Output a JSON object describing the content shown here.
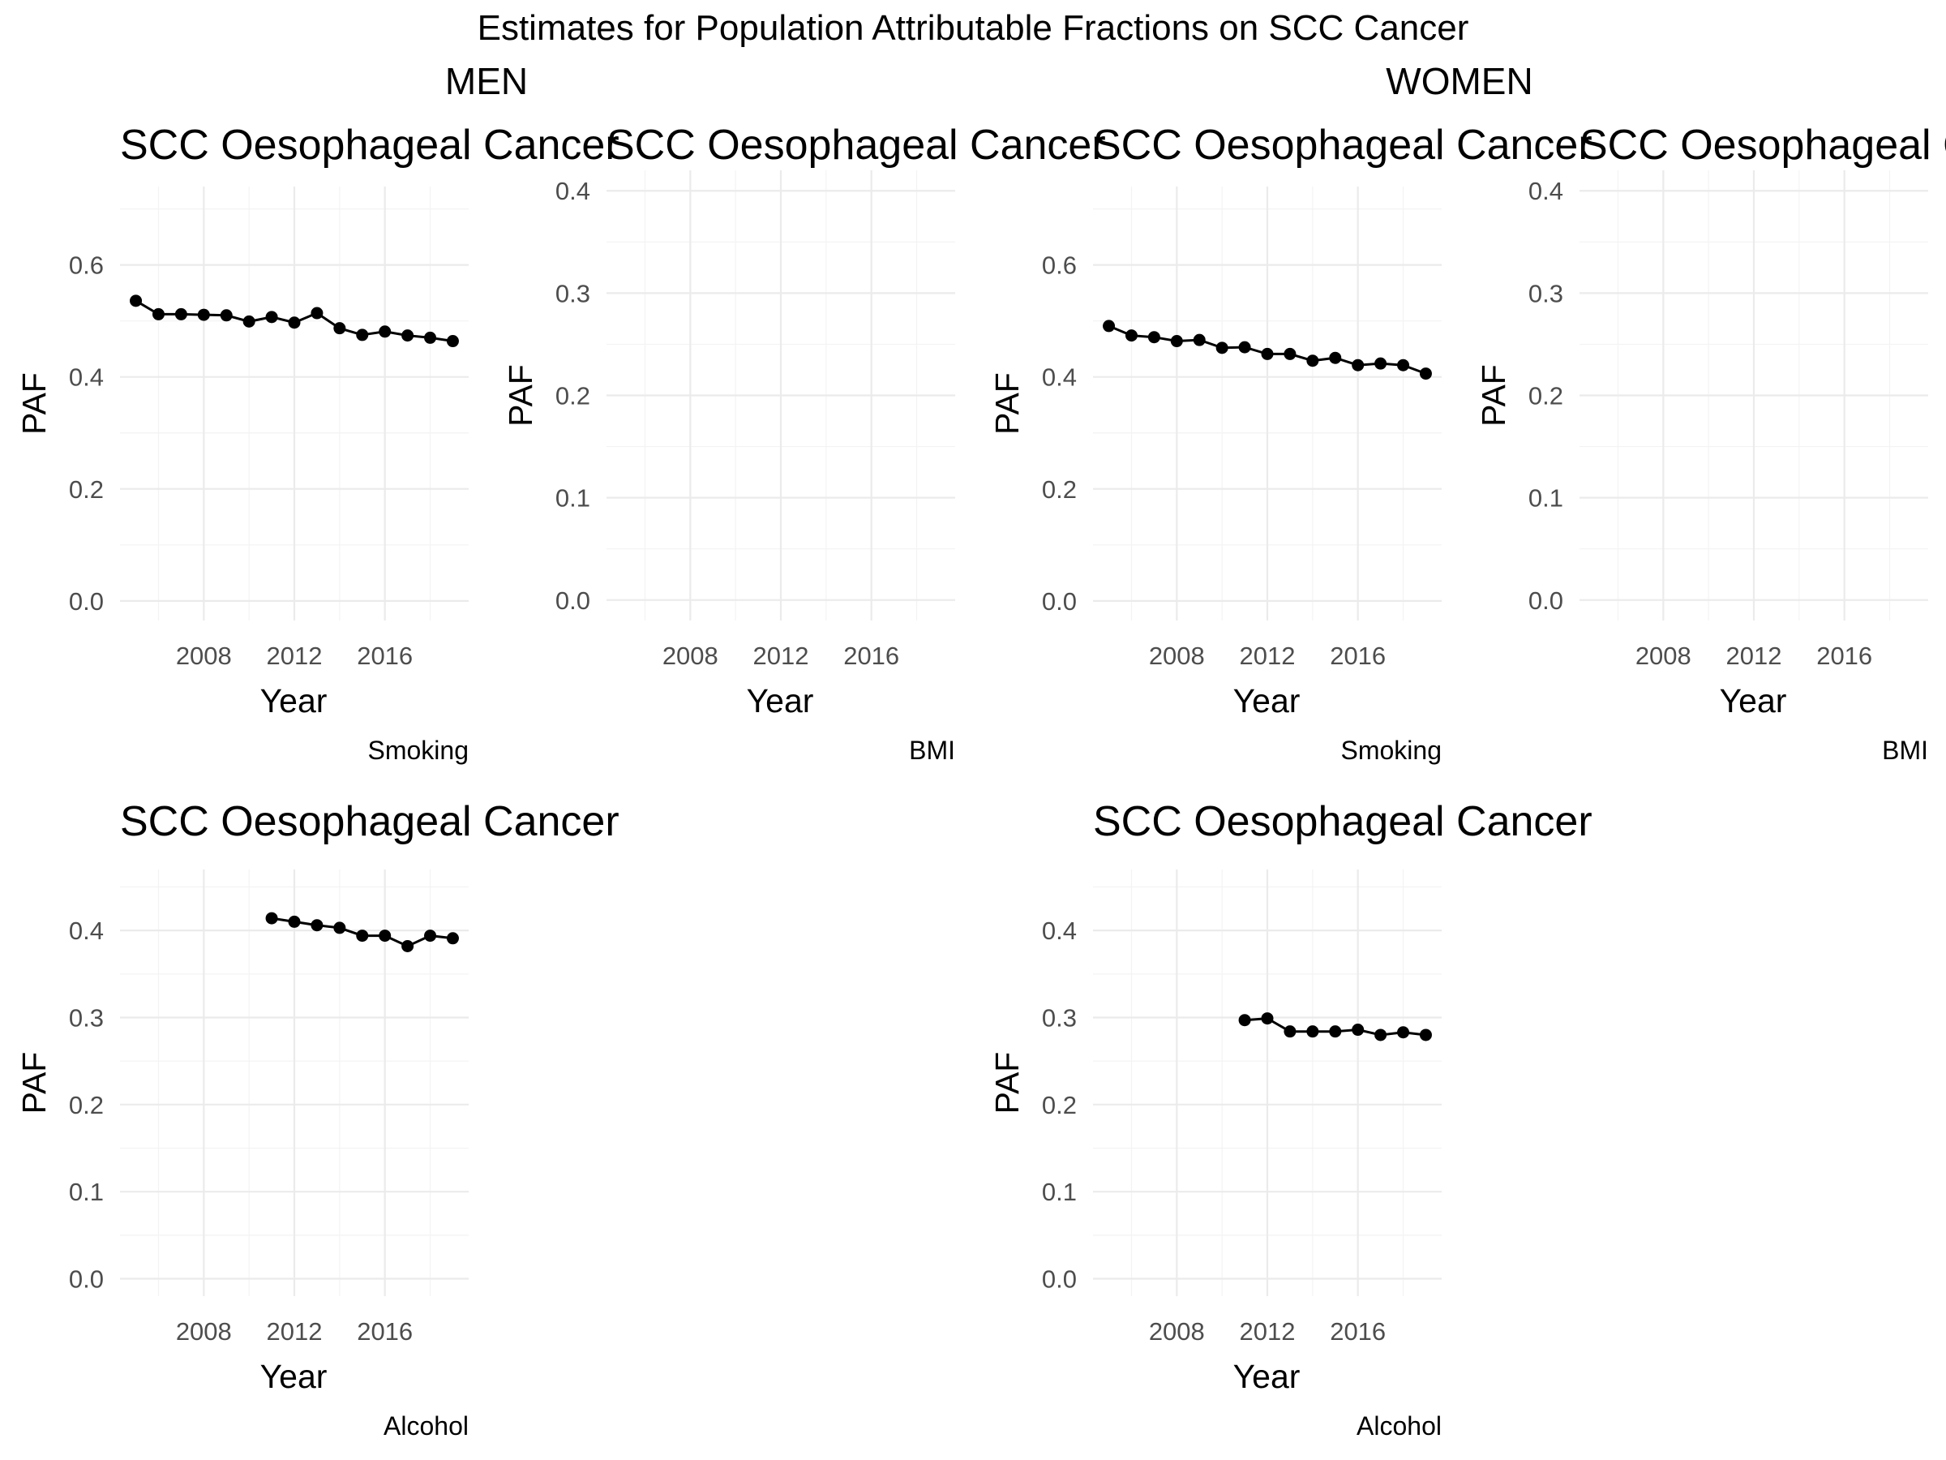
{
  "title": "Estimates for Population Attributable Fractions on SCC Cancer",
  "groups": [
    "MEN",
    "WOMEN"
  ],
  "chart_data": [
    {
      "type": "line",
      "group": "MEN",
      "title": "SCC Oesophageal Cancer",
      "caption": "Smoking",
      "xlabel": "Year",
      "ylabel": "PAF",
      "xlim": [
        2004.3,
        2019.7
      ],
      "xticks": [
        2008,
        2012,
        2016
      ],
      "xminor": [
        2006,
        2010,
        2014,
        2018
      ],
      "ylim": [
        -0.035,
        0.74
      ],
      "yticks": [
        0.0,
        0.2,
        0.4,
        0.6
      ],
      "yminor": [
        0.1,
        0.3,
        0.5,
        0.7
      ],
      "ytick_labels": [
        "0.0",
        "0.2",
        "0.4",
        "0.6"
      ],
      "grid": true,
      "x": [
        2005,
        2006,
        2007,
        2008,
        2009,
        2010,
        2011,
        2012,
        2013,
        2014,
        2015,
        2016,
        2017,
        2018,
        2019
      ],
      "y": [
        0.536,
        0.512,
        0.512,
        0.511,
        0.51,
        0.499,
        0.507,
        0.497,
        0.514,
        0.487,
        0.475,
        0.481,
        0.474,
        0.47,
        0.464
      ]
    },
    {
      "type": "line",
      "group": "MEN",
      "title": "SCC Oesophageal Cancer",
      "caption": "BMI",
      "xlabel": "Year",
      "ylabel": "PAF",
      "xlim": [
        2004.3,
        2019.7
      ],
      "xticks": [
        2008,
        2012,
        2016
      ],
      "xminor": [
        2006,
        2010,
        2014,
        2018
      ],
      "ylim": [
        -0.02,
        0.42
      ],
      "yticks": [
        0.0,
        0.1,
        0.2,
        0.3,
        0.4
      ],
      "yminor": [
        0.05,
        0.15,
        0.25,
        0.35
      ],
      "ytick_labels": [
        "0.0",
        "0.1",
        "0.2",
        "0.3",
        "0.4"
      ],
      "grid": true,
      "x": [],
      "y": []
    },
    {
      "type": "line",
      "group": "WOMEN",
      "title": "SCC Oesophageal Cancer",
      "caption": "Smoking",
      "xlabel": "Year",
      "ylabel": "PAF",
      "xlim": [
        2004.3,
        2019.7
      ],
      "xticks": [
        2008,
        2012,
        2016
      ],
      "xminor": [
        2006,
        2010,
        2014,
        2018
      ],
      "ylim": [
        -0.035,
        0.74
      ],
      "yticks": [
        0.0,
        0.2,
        0.4,
        0.6
      ],
      "yminor": [
        0.1,
        0.3,
        0.5,
        0.7
      ],
      "ytick_labels": [
        "0.0",
        "0.2",
        "0.4",
        "0.6"
      ],
      "grid": true,
      "x": [
        2005,
        2006,
        2007,
        2008,
        2009,
        2010,
        2011,
        2012,
        2013,
        2014,
        2015,
        2016,
        2017,
        2018,
        2019
      ],
      "y": [
        0.491,
        0.474,
        0.471,
        0.464,
        0.466,
        0.452,
        0.453,
        0.441,
        0.441,
        0.429,
        0.434,
        0.421,
        0.424,
        0.421,
        0.406
      ]
    },
    {
      "type": "line",
      "group": "WOMEN",
      "title": "SCC Oesophageal Cancer",
      "caption": "BMI",
      "xlabel": "Year",
      "ylabel": "PAF",
      "xlim": [
        2004.3,
        2019.7
      ],
      "xticks": [
        2008,
        2012,
        2016
      ],
      "xminor": [
        2006,
        2010,
        2014,
        2018
      ],
      "ylim": [
        -0.02,
        0.42
      ],
      "yticks": [
        0.0,
        0.1,
        0.2,
        0.3,
        0.4
      ],
      "yminor": [
        0.05,
        0.15,
        0.25,
        0.35
      ],
      "ytick_labels": [
        "0.0",
        "0.1",
        "0.2",
        "0.3",
        "0.4"
      ],
      "grid": true,
      "x": [],
      "y": []
    },
    {
      "type": "line",
      "group": "MEN",
      "title": "SCC Oesophageal Cancer",
      "caption": "Alcohol",
      "xlabel": "Year",
      "ylabel": "PAF",
      "xlim": [
        2004.3,
        2019.7
      ],
      "xticks": [
        2008,
        2012,
        2016
      ],
      "xminor": [
        2006,
        2010,
        2014,
        2018
      ],
      "ylim": [
        -0.02,
        0.47
      ],
      "yticks": [
        0.0,
        0.1,
        0.2,
        0.3,
        0.4
      ],
      "yminor": [
        0.05,
        0.15,
        0.25,
        0.35,
        0.45
      ],
      "ytick_labels": [
        "0.0",
        "0.1",
        "0.2",
        "0.3",
        "0.4"
      ],
      "grid": true,
      "x": [
        2011,
        2012,
        2013,
        2014,
        2015,
        2016,
        2017,
        2018,
        2019
      ],
      "y": [
        0.414,
        0.41,
        0.406,
        0.403,
        0.394,
        0.394,
        0.382,
        0.394,
        0.391
      ]
    },
    {
      "type": "line",
      "group": "WOMEN",
      "title": "SCC Oesophageal Cancer",
      "caption": "Alcohol",
      "xlabel": "Year",
      "ylabel": "PAF",
      "xlim": [
        2004.3,
        2019.7
      ],
      "xticks": [
        2008,
        2012,
        2016
      ],
      "xminor": [
        2006,
        2010,
        2014,
        2018
      ],
      "ylim": [
        -0.02,
        0.47
      ],
      "yticks": [
        0.0,
        0.1,
        0.2,
        0.3,
        0.4
      ],
      "yminor": [
        0.05,
        0.15,
        0.25,
        0.35,
        0.45
      ],
      "ytick_labels": [
        "0.0",
        "0.1",
        "0.2",
        "0.3",
        "0.4"
      ],
      "grid": true,
      "x": [
        2011,
        2012,
        2013,
        2014,
        2015,
        2016,
        2017,
        2018,
        2019
      ],
      "y": [
        0.297,
        0.299,
        0.284,
        0.284,
        0.284,
        0.286,
        0.28,
        0.283,
        0.28
      ]
    }
  ]
}
